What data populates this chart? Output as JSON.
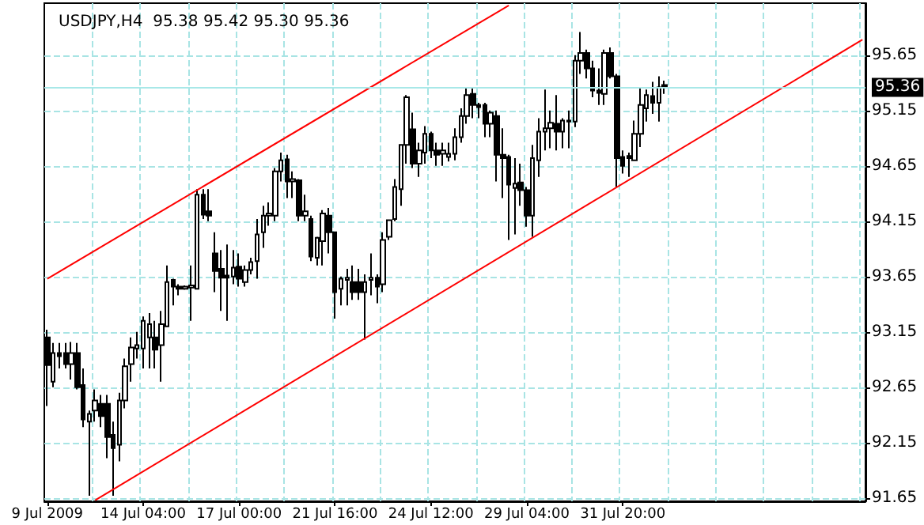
{
  "chart_data": {
    "type": "candlestick",
    "title": "USDJPY,H4  95.38 95.42 95.30 95.36",
    "categories": [
      "9 Jul 2009",
      null,
      null,
      null,
      null,
      null,
      null,
      null,
      null,
      null,
      null,
      null,
      null,
      null,
      null,
      null,
      "14 Jul 04:00",
      null,
      null,
      null,
      null,
      null,
      null,
      null,
      null,
      null,
      null,
      null,
      null,
      null,
      null,
      null,
      "17 Jul 00:00",
      null,
      null,
      null,
      null,
      null,
      null,
      null,
      null,
      null,
      null,
      null,
      null,
      null,
      null,
      null,
      "21 Jul 16:00",
      null,
      null,
      null,
      null,
      null,
      null,
      null,
      null,
      null,
      null,
      null,
      null,
      null,
      null,
      null,
      "24 Jul 12:00",
      null,
      null,
      null,
      null,
      null,
      null,
      null,
      null,
      null,
      null,
      null,
      null,
      null,
      null,
      null,
      "29 Jul 04:00",
      null,
      null,
      null,
      null,
      null,
      null,
      null,
      null,
      null,
      null,
      null,
      null,
      null,
      null,
      null,
      "31 Jul 20:00",
      null,
      null,
      null,
      null,
      null,
      null,
      null,
      null,
      null,
      null,
      null,
      null,
      null,
      null,
      null,
      null,
      null,
      null,
      null,
      null,
      null,
      null,
      null,
      null,
      null,
      null,
      null,
      null,
      null,
      null,
      null,
      null,
      null,
      null,
      null,
      null,
      null,
      null,
      null,
      null
    ],
    "ohlc": [
      [
        93.1,
        93.17,
        92.48,
        92.85
      ],
      [
        92.7,
        93.05,
        92.65,
        92.96
      ],
      [
        92.96,
        93.05,
        92.82,
        92.93
      ],
      [
        92.96,
        93.05,
        92.82,
        92.86
      ],
      [
        92.86,
        93.06,
        92.72,
        92.96
      ],
      [
        92.96,
        93.05,
        92.63,
        92.65
      ],
      [
        92.67,
        92.82,
        92.29,
        92.36
      ],
      [
        92.34,
        92.44,
        91.67,
        92.41
      ],
      [
        92.44,
        92.63,
        92.34,
        92.53
      ],
      [
        92.5,
        92.58,
        92.29,
        92.39
      ],
      [
        92.5,
        92.58,
        92.01,
        92.2
      ],
      [
        92.22,
        92.34,
        91.67,
        92.1
      ],
      [
        92.13,
        92.6,
        91.98,
        92.53
      ],
      [
        92.53,
        92.91,
        92.46,
        92.84
      ],
      [
        92.86,
        93.1,
        92.7,
        93.01
      ],
      [
        93.0,
        93.15,
        92.91,
        93.03
      ],
      [
        93.0,
        93.29,
        92.82,
        93.25
      ],
      [
        93.1,
        93.32,
        92.82,
        93.22
      ],
      [
        93.1,
        93.25,
        92.82,
        92.99
      ],
      [
        93.03,
        93.34,
        92.7,
        93.22
      ],
      [
        93.2,
        93.75,
        93.2,
        93.6
      ],
      [
        93.62,
        93.63,
        93.39,
        93.56
      ],
      [
        93.56,
        93.58,
        93.48,
        93.54
      ],
      [
        93.54,
        93.57,
        93.53,
        93.56
      ],
      [
        93.55,
        93.75,
        93.25,
        93.57
      ],
      [
        93.54,
        94.44,
        93.54,
        94.39
      ],
      [
        94.39,
        94.44,
        94.17,
        94.21
      ],
      [
        94.24,
        94.44,
        94.15,
        94.2
      ],
      [
        93.86,
        94.05,
        93.51,
        93.7
      ],
      [
        93.72,
        93.89,
        93.34,
        93.64
      ],
      [
        93.66,
        93.94,
        93.25,
        93.64
      ],
      [
        93.65,
        93.89,
        93.58,
        93.73
      ],
      [
        93.74,
        93.86,
        93.56,
        93.63
      ],
      [
        93.6,
        93.75,
        93.56,
        93.71
      ],
      [
        93.71,
        93.82,
        93.67,
        93.78
      ],
      [
        93.79,
        94.17,
        93.63,
        94.03
      ],
      [
        94.05,
        94.29,
        93.91,
        94.2
      ],
      [
        94.2,
        94.32,
        94.11,
        94.22
      ],
      [
        94.2,
        94.63,
        94.15,
        94.6
      ],
      [
        94.6,
        94.77,
        94.51,
        94.7
      ],
      [
        94.71,
        94.75,
        94.36,
        94.51
      ],
      [
        94.51,
        94.6,
        94.36,
        94.53
      ],
      [
        94.52,
        94.53,
        94.15,
        94.2
      ],
      [
        94.2,
        94.39,
        94.15,
        94.24
      ],
      [
        94.17,
        94.2,
        93.79,
        93.83
      ],
      [
        93.82,
        94.01,
        93.75,
        94.0
      ],
      [
        93.97,
        94.25,
        93.75,
        94.22
      ],
      [
        94.2,
        94.27,
        93.86,
        94.05
      ],
      [
        94.05,
        94.05,
        93.27,
        93.51
      ],
      [
        93.54,
        93.65,
        93.39,
        93.63
      ],
      [
        93.62,
        93.72,
        93.39,
        93.64
      ],
      [
        93.6,
        93.75,
        93.44,
        93.51
      ],
      [
        93.6,
        93.72,
        93.44,
        93.51
      ],
      [
        93.51,
        93.67,
        93.08,
        93.6
      ],
      [
        93.62,
        93.86,
        93.48,
        93.64
      ],
      [
        93.64,
        93.67,
        93.41,
        93.56
      ],
      [
        93.58,
        94.05,
        93.51,
        93.98
      ],
      [
        94.01,
        94.16,
        93.98,
        94.16
      ],
      [
        94.17,
        94.53,
        94.15,
        94.46
      ],
      [
        94.44,
        94.84,
        94.29,
        94.84
      ],
      [
        94.84,
        95.29,
        94.67,
        95.27
      ],
      [
        94.98,
        95.13,
        94.63,
        94.67
      ],
      [
        94.67,
        94.86,
        94.55,
        94.79
      ],
      [
        94.77,
        95.01,
        94.67,
        94.94
      ],
      [
        94.94,
        94.96,
        94.72,
        94.79
      ],
      [
        94.79,
        94.86,
        94.65,
        94.75
      ],
      [
        94.76,
        94.86,
        94.65,
        94.79
      ],
      [
        94.73,
        94.86,
        94.69,
        94.76
      ],
      [
        94.76,
        94.99,
        94.7,
        94.91
      ],
      [
        94.91,
        95.17,
        94.86,
        95.1
      ],
      [
        95.1,
        95.36,
        95.03,
        95.29
      ],
      [
        95.3,
        95.36,
        95.08,
        95.2
      ],
      [
        95.2,
        95.22,
        95.08,
        95.18
      ],
      [
        95.2,
        95.22,
        94.91,
        95.03
      ],
      [
        95.03,
        95.15,
        94.91,
        95.13
      ],
      [
        95.1,
        95.15,
        94.51,
        94.75
      ],
      [
        94.75,
        94.99,
        94.36,
        94.72
      ],
      [
        94.73,
        94.75,
        93.98,
        94.48
      ],
      [
        94.45,
        94.72,
        94.03,
        94.49
      ],
      [
        94.5,
        94.67,
        94.29,
        94.43
      ],
      [
        94.43,
        94.46,
        94.1,
        94.2
      ],
      [
        94.2,
        94.84,
        94.01,
        94.72
      ],
      [
        94.7,
        95.08,
        94.55,
        94.96
      ],
      [
        94.96,
        95.34,
        94.79,
        94.99
      ],
      [
        94.99,
        95.15,
        94.81,
        95.04
      ],
      [
        95.03,
        95.29,
        94.79,
        94.96
      ],
      [
        94.96,
        95.08,
        94.81,
        95.06
      ],
      [
        95.05,
        95.15,
        94.81,
        95.06
      ],
      [
        95.05,
        95.65,
        95.0,
        95.6
      ],
      [
        95.6,
        95.86,
        95.48,
        95.67
      ],
      [
        95.67,
        95.7,
        95.44,
        95.53
      ],
      [
        95.53,
        95.6,
        95.27,
        95.33
      ],
      [
        95.33,
        95.53,
        95.2,
        95.31
      ],
      [
        95.3,
        95.7,
        95.2,
        95.67
      ],
      [
        95.67,
        95.72,
        95.44,
        95.46
      ],
      [
        95.46,
        95.48,
        94.46,
        94.72
      ],
      [
        94.73,
        94.79,
        94.58,
        94.65
      ],
      [
        94.74,
        94.77,
        94.55,
        94.72
      ],
      [
        94.7,
        95.06,
        94.7,
        94.94
      ],
      [
        94.94,
        95.36,
        94.82,
        95.2
      ],
      [
        95.17,
        95.34,
        95.05,
        95.29
      ],
      [
        95.28,
        95.41,
        95.12,
        95.22
      ],
      [
        95.22,
        95.46,
        95.05,
        95.36
      ],
      [
        95.38,
        95.42,
        95.3,
        95.36
      ],
      null,
      null,
      null,
      null,
      null,
      null,
      null,
      null,
      null,
      null,
      null,
      null,
      null,
      null,
      null,
      null,
      null,
      null,
      null,
      null,
      null,
      null,
      null,
      null,
      null,
      null,
      null,
      null,
      null,
      null,
      null,
      null,
      null
    ],
    "series": [
      {
        "type": "line",
        "color": "#ff0000",
        "values": [
          93.63,
          null,
          null,
          null,
          null,
          null,
          null,
          null,
          null,
          null,
          null,
          null,
          null,
          null,
          null,
          null,
          null,
          null,
          null,
          null,
          null,
          null,
          null,
          null,
          null,
          null,
          null,
          null,
          null,
          null,
          null,
          null,
          null,
          null,
          null,
          null,
          null,
          null,
          null,
          null,
          null,
          null,
          null,
          null,
          null,
          null,
          null,
          null,
          null,
          null,
          null,
          null,
          null,
          null,
          null,
          null,
          null,
          null,
          null,
          null,
          null,
          null,
          null,
          null,
          null,
          null,
          null,
          null,
          null,
          null,
          null,
          null,
          null,
          null,
          null,
          null,
          null,
          96.1,
          null,
          null,
          null,
          null,
          null,
          null,
          null,
          null,
          null,
          null,
          null,
          null,
          null,
          null,
          null,
          null,
          null,
          null,
          null,
          null,
          null,
          null,
          null,
          null,
          null,
          null,
          null,
          null,
          null,
          null,
          null,
          null,
          null,
          null,
          null,
          null,
          null,
          null,
          null,
          null,
          null,
          null,
          null,
          null,
          null,
          null,
          null,
          null,
          null,
          null,
          null,
          null,
          null,
          null,
          null,
          null,
          null,
          null,
          null
        ]
      },
      {
        "type": "line",
        "color": "#ff0000",
        "values": [
          null,
          null,
          null,
          null,
          null,
          null,
          null,
          null,
          91.63,
          null,
          null,
          null,
          null,
          null,
          null,
          null,
          null,
          null,
          null,
          null,
          null,
          null,
          null,
          null,
          null,
          null,
          null,
          null,
          null,
          null,
          null,
          null,
          null,
          null,
          null,
          null,
          null,
          null,
          null,
          null,
          null,
          null,
          null,
          null,
          null,
          null,
          null,
          null,
          null,
          null,
          null,
          null,
          null,
          null,
          null,
          null,
          null,
          null,
          null,
          null,
          null,
          null,
          null,
          null,
          null,
          null,
          null,
          null,
          null,
          null,
          null,
          null,
          null,
          null,
          null,
          null,
          null,
          null,
          null,
          null,
          null,
          null,
          null,
          null,
          null,
          null,
          null,
          null,
          null,
          null,
          null,
          null,
          null,
          null,
          null,
          null,
          null,
          null,
          null,
          null,
          null,
          null,
          null,
          null,
          null,
          null,
          null,
          null,
          null,
          null,
          null,
          null,
          null,
          null,
          null,
          null,
          null,
          null,
          null,
          null,
          null,
          null,
          null,
          null,
          null,
          null,
          null,
          null,
          null,
          null,
          null,
          null,
          null,
          null,
          null,
          null,
          95.79
        ]
      }
    ],
    "ylim": [
      91.62,
      96.12
    ],
    "yticks": [
      91.65,
      92.15,
      92.65,
      93.15,
      93.65,
      94.15,
      94.65,
      95.15,
      95.65
    ],
    "ref_lines": [
      {
        "axis": "y",
        "value": 95.36,
        "label": "95.36",
        "color": "#a8e8e8"
      }
    ],
    "grid": true
  }
}
